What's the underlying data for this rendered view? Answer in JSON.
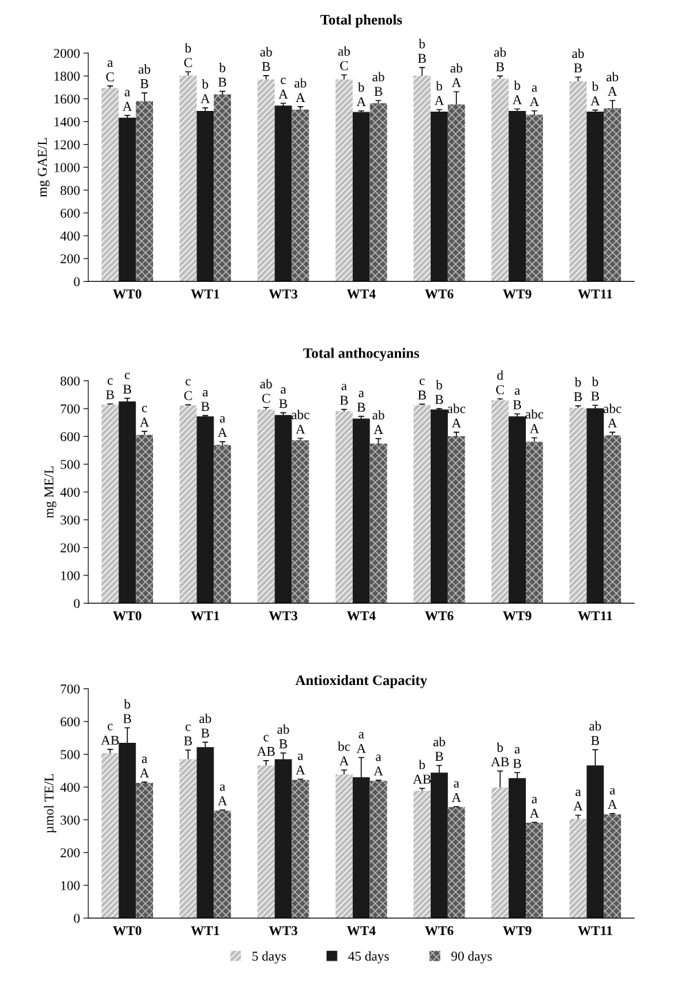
{
  "chart_data": [
    {
      "type": "bar",
      "title": "Total phenols",
      "ylabel": "mg GAE/L",
      "categories": [
        "WT0",
        "WT1",
        "WT3",
        "WT4",
        "WT6",
        "WT9",
        "WT11"
      ],
      "ylim": [
        0,
        2000
      ],
      "yticks": [
        0,
        200,
        400,
        600,
        800,
        1000,
        1200,
        1400,
        1600,
        1800,
        2000
      ],
      "grid": false,
      "series": [
        {
          "color": "#bfbfbf",
          "values": [
            1695,
            1803,
            1770,
            1770,
            1803,
            1776,
            1753
          ],
          "errors": [
            17,
            34,
            33,
            40,
            71,
            24,
            37
          ],
          "value_labels": [
            "a\nC",
            "b\nC",
            "ab\nB",
            "ab\nC",
            "b\nB",
            "ab\nB",
            "ab\nB"
          ]
        },
        {
          "color": "#1a1a1a",
          "values": [
            1434,
            1494,
            1541,
            1484,
            1488,
            1494,
            1488
          ],
          "errors": [
            20,
            27,
            20,
            10,
            17,
            17,
            13
          ],
          "value_labels": [
            "a\nA",
            "b\nA",
            "c\nA",
            "b\nA",
            "b\nA",
            "b\nA",
            "b\nA"
          ]
        },
        {
          "color": "#595959",
          "values": [
            1579,
            1639,
            1505,
            1561,
            1551,
            1460,
            1518
          ],
          "errors": [
            73,
            27,
            26,
            24,
            111,
            34,
            67
          ],
          "value_labels": [
            "ab\nB",
            "b\nB",
            "ab\nA",
            "ab\nB",
            "ab\nA",
            "a\nA",
            "ab\nA"
          ]
        }
      ]
    },
    {
      "type": "bar",
      "title": "Total anthocyanins",
      "ylabel": "mg ME/L",
      "categories": [
        "WT0",
        "WT1",
        "WT3",
        "WT4",
        "WT6",
        "WT9",
        "WT11"
      ],
      "ylim": [
        0,
        800
      ],
      "yticks": [
        0,
        100,
        200,
        300,
        400,
        500,
        600,
        700,
        800
      ],
      "grid": false,
      "series": [
        {
          "color": "#bfbfbf",
          "values": [
            714,
            712,
            697,
            690,
            713,
            730,
            703
          ],
          "errors": [
            3,
            2,
            7,
            7,
            3,
            5,
            7
          ],
          "value_labels": [
            "c\nB",
            "c\nC",
            "ab\nC",
            "a\nB",
            "c\nB",
            "d\nC",
            "b\nB"
          ]
        },
        {
          "color": "#1a1a1a",
          "values": [
            726,
            672,
            677,
            664,
            697,
            672,
            701
          ],
          "errors": [
            11,
            3,
            8,
            8,
            3,
            9,
            11
          ],
          "value_labels": [
            "c\nB",
            "a\nB",
            "a\nB",
            "a\nB",
            "b\nB",
            "a\nB",
            "b\nB"
          ]
        },
        {
          "color": "#595959",
          "values": [
            606,
            570,
            586,
            574,
            601,
            581,
            604
          ],
          "errors": [
            12,
            11,
            7,
            18,
            14,
            14,
            11
          ],
          "value_labels": [
            "c\nA",
            "a\nA",
            "abc\nA",
            "ab\nA",
            "abc\nA",
            "abc\nA",
            "abc\nA"
          ]
        }
      ]
    },
    {
      "type": "bar",
      "title": "Antioxidant Capacity",
      "ylabel": "µmol TE/L",
      "categories": [
        "WT0",
        "WT1",
        "WT3",
        "WT4",
        "WT6",
        "WT9",
        "WT11"
      ],
      "ylim": [
        0,
        700
      ],
      "yticks": [
        0,
        100,
        200,
        300,
        400,
        500,
        600,
        700
      ],
      "grid": false,
      "legend": "bottom",
      "series": [
        {
          "name": "5 days",
          "color": "#bfbfbf",
          "values": [
            504,
            485,
            466,
            439,
            389,
            399,
            303
          ],
          "errors": [
            11,
            28,
            15,
            13,
            7,
            50,
            11
          ],
          "value_labels": [
            "c\nAB",
            "c\nB",
            "c\nAB",
            "bc\nA",
            "b\nAB",
            "b\nAB",
            "a\nA"
          ]
        },
        {
          "name": "45 days",
          "color": "#1a1a1a",
          "values": [
            535,
            522,
            485,
            430,
            444,
            427,
            466
          ],
          "errors": [
            46,
            15,
            19,
            60,
            22,
            17,
            48
          ],
          "value_labels": [
            "b\nB",
            "ab\nB",
            "ab\nB",
            "a\nA",
            "ab\nB",
            "a\nB",
            "ab\nB"
          ]
        },
        {
          "name": "90 days",
          "color": "#595959",
          "values": [
            413,
            328,
            422,
            419,
            339,
            291,
            317
          ],
          "errors": [
            2,
            2,
            2,
            2,
            1,
            1,
            2
          ],
          "value_labels": [
            "a\nA",
            "a\nA",
            "a\nA",
            "a\nA",
            "a\nA",
            "a\nA",
            "a\nA"
          ]
        }
      ]
    }
  ]
}
